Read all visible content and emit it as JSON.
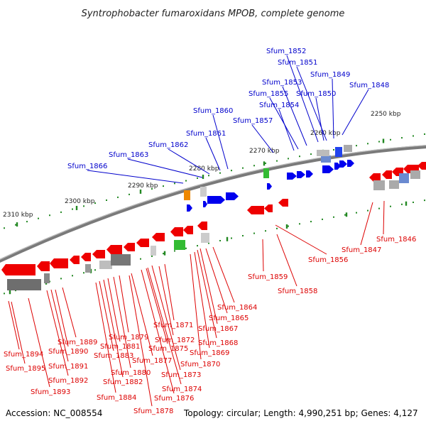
{
  "title": "Syntrophobacter fumaroxidans MPOB, complete genome",
  "footer": {
    "accession": "Accession: NC_008554",
    "topology": "Topology: circular; Length: 4,990,251 bp; Genes: 4,127"
  },
  "colors": {
    "plus_strand": "#0000ee",
    "minus_strand": "#ee0000",
    "plus_label": "#0000cc",
    "minus_label": "#dd0000",
    "backbone": "#7a7a7a",
    "tick": "#228822",
    "rna": "#ee8800",
    "highlight": "#33bb33"
  },
  "ticks": [
    {
      "label": "2250 kbp"
    },
    {
      "label": "2260 kbp"
    },
    {
      "label": "2270 kbp"
    },
    {
      "label": "2280 kbp"
    },
    {
      "label": "2290 kbp"
    },
    {
      "label": "2300 kbp"
    },
    {
      "label": "2310 kbp"
    }
  ],
  "plus_labels": [
    "Sfum_1852",
    "Sfum_1851",
    "Sfum_1849",
    "Sfum_1853",
    "Sfum_1848",
    "Sfum_1855",
    "Sfum_1850",
    "Sfum_1854",
    "Sfum_1860",
    "Sfum_1857",
    "Sfum_1861",
    "Sfum_1862",
    "Sfum_1863",
    "Sfum_1866"
  ],
  "minus_labels": [
    "Sfum_1846",
    "Sfum_1847",
    "Sfum_1856",
    "Sfum_1859",
    "Sfum_1858",
    "Sfum_1864",
    "Sfum_1865",
    "Sfum_1867",
    "Sfum_1868",
    "Sfum_1869",
    "Sfum_1870",
    "Sfum_1871",
    "Sfum_1872",
    "Sfum_1873",
    "Sfum_1874",
    "Sfum_1875",
    "Sfum_1876",
    "Sfum_1877",
    "Sfum_1878",
    "Sfum_1879",
    "Sfum_1880",
    "Sfum_1881",
    "Sfum_1882",
    "Sfum_1883",
    "Sfum_1884",
    "Sfum_1889",
    "Sfum_1890",
    "Sfum_1891",
    "Sfum_1892",
    "Sfum_1893",
    "Sfum_1894",
    "Sfum_1895"
  ]
}
